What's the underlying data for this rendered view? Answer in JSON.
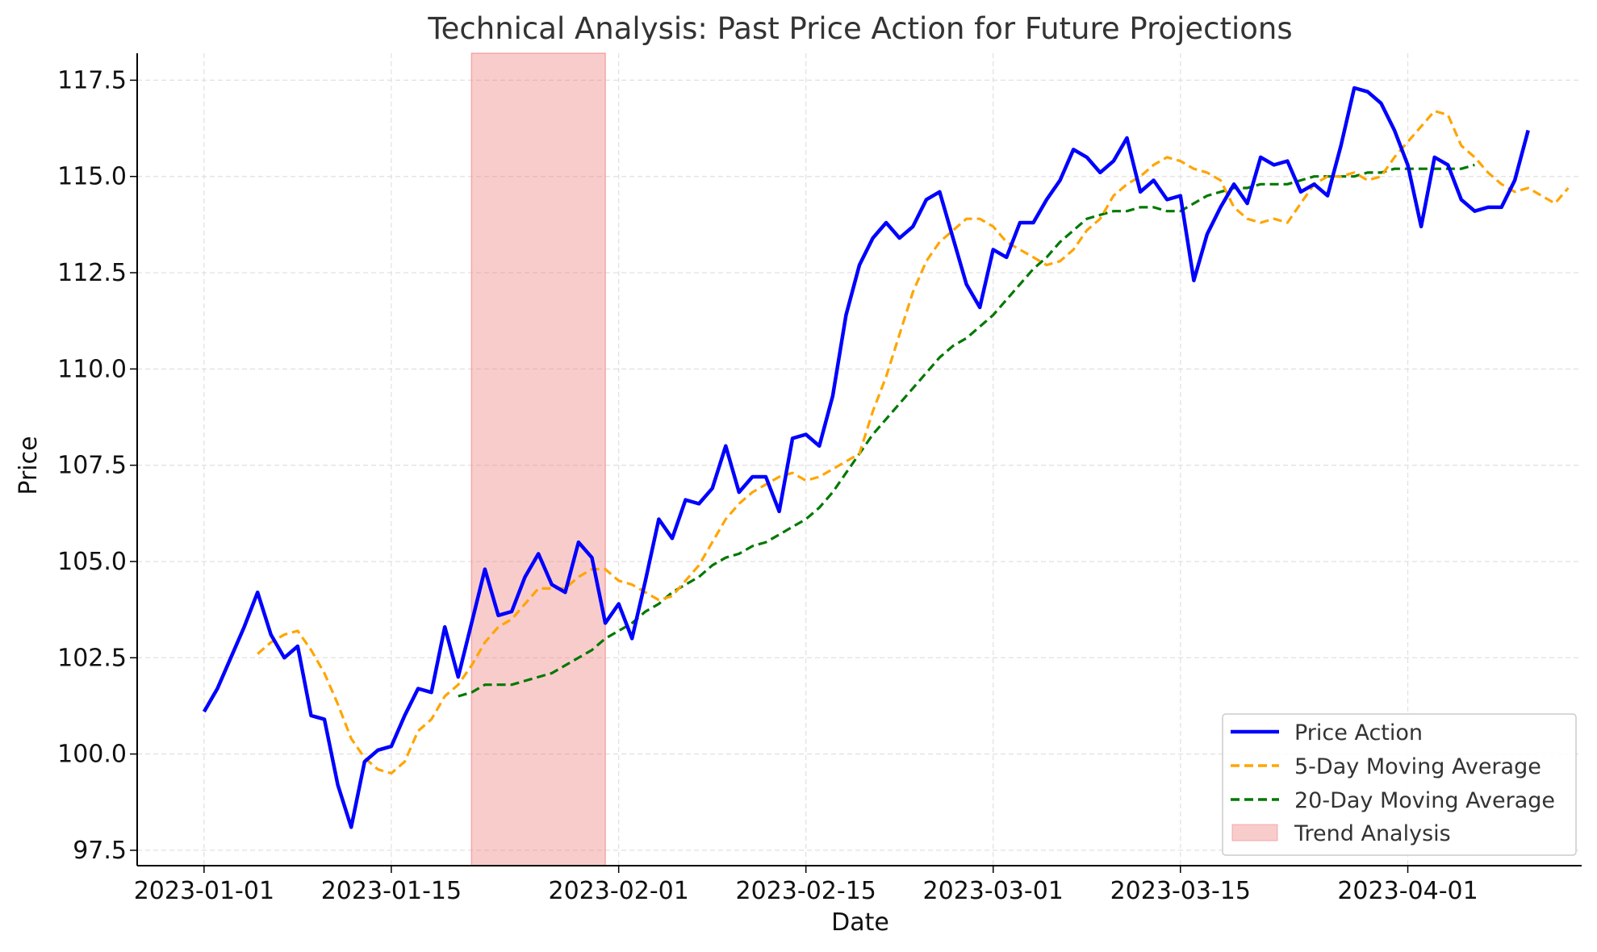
{
  "chart_data": {
    "type": "line",
    "title": "Technical Analysis: Past Price Action for Future Projections",
    "xlabel": "Date",
    "ylabel": "Price",
    "x_start": "2023-01-01",
    "x_end": "2023-04-10",
    "x_ticks": [
      "2023-01-01",
      "2023-01-15",
      "2023-02-01",
      "2023-02-15",
      "2023-03-01",
      "2023-03-15",
      "2023-04-01"
    ],
    "xlim": [
      "2022-12-27",
      "2023-04-14"
    ],
    "ylim": [
      97.1,
      118.2
    ],
    "y_ticks": [
      "97.5",
      "100.0",
      "102.5",
      "105.0",
      "107.5",
      "110.0",
      "112.5",
      "115.0",
      "117.5"
    ],
    "grid": true,
    "legend_position": "lower-right",
    "shaded_region": {
      "name": "Trend Analysis",
      "start": "2023-01-21",
      "end": "2023-01-31",
      "color": "#f08080"
    },
    "series": [
      {
        "name": "Price Action",
        "color": "#0000ff",
        "style": "solid",
        "start": "2023-01-01",
        "values": [
          101.1,
          101.7,
          102.5,
          103.3,
          104.2,
          103.1,
          102.5,
          102.8,
          101.0,
          100.9,
          99.2,
          98.1,
          99.8,
          100.1,
          100.2,
          101.0,
          101.7,
          101.6,
          103.3,
          102.0,
          103.4,
          104.8,
          103.6,
          103.7,
          104.6,
          105.2,
          104.4,
          104.2,
          105.5,
          105.1,
          103.4,
          103.9,
          103.0,
          104.5,
          106.1,
          105.6,
          106.6,
          106.5,
          106.9,
          108.0,
          106.8,
          107.2,
          107.2,
          106.3,
          108.2,
          108.3,
          108.0,
          109.3,
          111.4,
          112.7,
          113.4,
          113.8,
          113.4,
          113.7,
          114.4,
          114.6,
          113.4,
          112.2,
          111.6,
          113.1,
          112.9,
          113.8,
          113.8,
          114.4,
          114.9,
          115.7,
          115.5,
          115.1,
          115.4,
          116.0,
          114.6,
          114.9,
          114.4,
          114.5,
          112.3,
          113.5,
          114.2,
          114.8,
          114.3,
          115.5,
          115.3,
          115.4,
          114.6,
          114.8,
          114.5,
          115.8,
          117.3,
          117.2,
          116.9,
          116.2,
          115.3,
          113.7,
          115.5,
          115.3,
          114.4,
          114.1,
          114.2,
          114.2,
          114.9,
          116.2
        ]
      },
      {
        "name": "5-Day Moving Average",
        "color": "#ffa500",
        "style": "dashed",
        "start": "2023-01-05",
        "values": [
          102.6,
          102.9,
          103.1,
          103.2,
          102.7,
          102.1,
          101.3,
          100.4,
          99.9,
          99.6,
          99.5,
          99.8,
          100.6,
          100.9,
          101.5,
          101.8,
          102.3,
          102.9,
          103.3,
          103.5,
          103.9,
          104.3,
          104.3,
          104.3,
          104.6,
          104.8,
          104.8,
          104.5,
          104.4,
          104.2,
          104.0,
          104.1,
          104.5,
          104.9,
          105.5,
          106.1,
          106.5,
          106.8,
          107.0,
          107.2,
          107.3,
          107.1,
          107.2,
          107.4,
          107.6,
          107.8,
          108.9,
          109.8,
          110.9,
          112.0,
          112.8,
          113.3,
          113.6,
          113.9,
          113.9,
          113.7,
          113.3,
          113.1,
          112.9,
          112.7,
          112.8,
          113.1,
          113.6,
          113.9,
          114.5,
          114.8,
          115.0,
          115.3,
          115.5,
          115.4,
          115.2,
          115.1,
          114.9,
          114.2,
          113.9,
          113.8,
          113.9,
          113.8,
          114.3,
          114.8,
          115.0,
          115.0,
          115.1,
          114.9,
          115.0,
          115.5,
          115.9,
          116.3,
          116.7,
          116.6,
          115.8,
          115.5,
          115.1,
          114.8,
          114.6,
          114.7,
          114.5,
          114.3,
          114.7
        ]
      },
      {
        "name": "20-Day Moving Average",
        "color": "#007800",
        "style": "dashed",
        "start": "2023-01-20",
        "values": [
          101.5,
          101.6,
          101.8,
          101.8,
          101.8,
          101.9,
          102.0,
          102.1,
          102.3,
          102.5,
          102.7,
          103.0,
          103.2,
          103.4,
          103.7,
          103.9,
          104.2,
          104.4,
          104.6,
          104.9,
          105.1,
          105.2,
          105.4,
          105.5,
          105.7,
          105.9,
          106.1,
          106.4,
          106.8,
          107.3,
          107.8,
          108.3,
          108.7,
          109.1,
          109.5,
          109.9,
          110.3,
          110.6,
          110.8,
          111.1,
          111.4,
          111.8,
          112.2,
          112.6,
          112.9,
          113.3,
          113.6,
          113.9,
          114.0,
          114.1,
          114.1,
          114.2,
          114.2,
          114.1,
          114.1,
          114.3,
          114.5,
          114.6,
          114.7,
          114.7,
          114.8,
          114.8,
          114.8,
          114.9,
          115.0,
          115.0,
          115.0,
          115.0,
          115.1,
          115.1,
          115.2,
          115.2,
          115.2,
          115.2,
          115.2,
          115.2,
          115.3
        ]
      }
    ]
  }
}
